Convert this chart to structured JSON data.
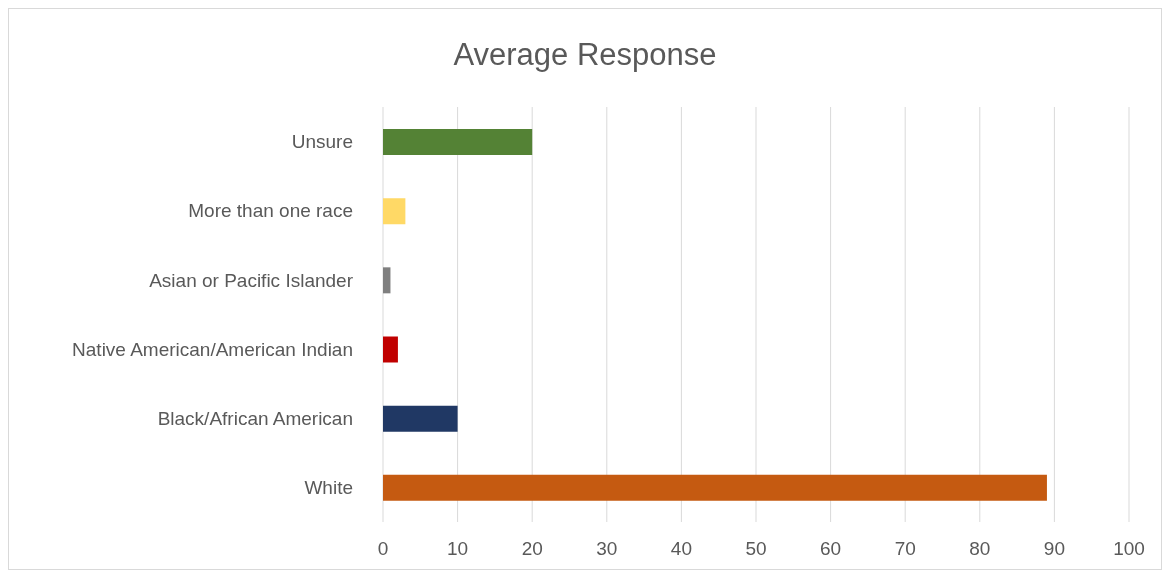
{
  "chart_data": {
    "type": "bar",
    "orientation": "horizontal",
    "title": "Average Response",
    "categories": [
      "Unsure",
      "More than one race",
      "Asian or Pacific Islander",
      "Native American/American Indian",
      "Black/African American",
      "White"
    ],
    "values": [
      20,
      3,
      1,
      2,
      10,
      89
    ],
    "colors": [
      "#548235",
      "#ffd966",
      "#7f7f7f",
      "#c00000",
      "#203864",
      "#c55a11"
    ],
    "xlim": [
      0,
      100
    ],
    "xticks": [
      0,
      10,
      20,
      30,
      40,
      50,
      60,
      70,
      80,
      90,
      100
    ],
    "grid": "x"
  }
}
